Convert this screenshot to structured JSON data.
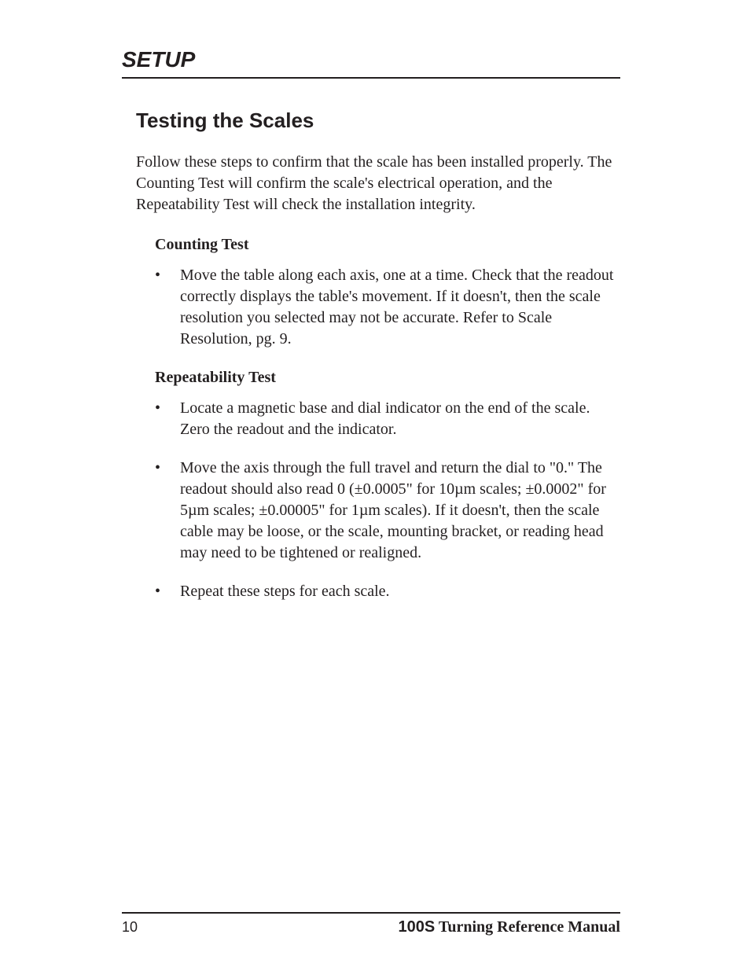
{
  "section_header": "SETUP",
  "page_title": "Testing the Scales",
  "intro_para": "Follow these steps to confirm that the scale has been installed properly. The Counting Test will confirm the scale's electrical operation, and the Repeatability Test will check the installation integrity.",
  "counting": {
    "heading": "Counting Test",
    "items": [
      "Move the table along each axis, one at a time. Check that the readout correctly displays the table's movement. If it doesn't, then the scale resolution you selected may not be accurate. Refer to Scale Resolution, pg. 9."
    ]
  },
  "repeatability": {
    "heading": "Repeatability Test",
    "items": [
      "Locate a magnetic base and dial indicator on the end of the scale. Zero the readout and the indicator.",
      "Move the axis through the full travel and return the dial to \"0.\" The readout should also read 0 (±0.0005\" for 10µm scales; ±0.0002\" for 5µm scales; ±0.00005\" for 1µm scales). If it doesn't, then the scale cable may be loose, or the scale, mounting bracket, or reading head may need to be tightened or realigned.",
      "Repeat these steps for each scale."
    ]
  },
  "footer": {
    "page_number": "10",
    "manual_bold": "100S",
    "manual_rest": " Turning Reference Manual"
  },
  "colors": {
    "text": "#231f20",
    "background": "#ffffff",
    "rule": "#231f20"
  },
  "typography": {
    "body_font": "Times New Roman",
    "heading_font": "Arial",
    "section_header_size": 28,
    "page_title_size": 26,
    "body_size": 20,
    "subheading_size": 20,
    "page_number_size": 18
  }
}
